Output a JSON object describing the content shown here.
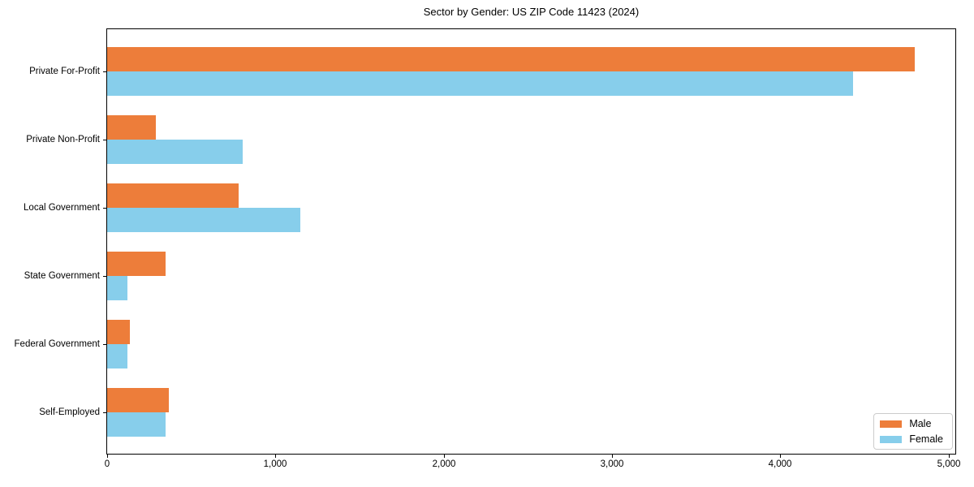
{
  "chart_data": {
    "type": "bar",
    "orientation": "horizontal",
    "title": "Sector by Gender: US ZIP Code 11423 (2024)",
    "categories": [
      "Private For-Profit",
      "Private Non-Profit",
      "Local Government",
      "State Government",
      "Federal Government",
      "Self-Employed"
    ],
    "series": [
      {
        "name": "Male",
        "color": "#ED7D3A",
        "values": [
          4800,
          290,
          780,
          345,
          135,
          365
        ]
      },
      {
        "name": "Female",
        "color": "#87CEEB",
        "values": [
          4430,
          805,
          1150,
          120,
          120,
          345
        ]
      }
    ],
    "xlabel": "",
    "ylabel": "",
    "xlim": [
      0,
      5040
    ],
    "xticks": [
      0,
      1000,
      2000,
      3000,
      4000,
      5000
    ],
    "xtick_labels": [
      "0",
      "1,000",
      "2,000",
      "3,000",
      "4,000",
      "5,000"
    ],
    "grid": false,
    "legend_position": "lower right",
    "plot_border_color": "#000000",
    "background_color": "#ffffff"
  }
}
